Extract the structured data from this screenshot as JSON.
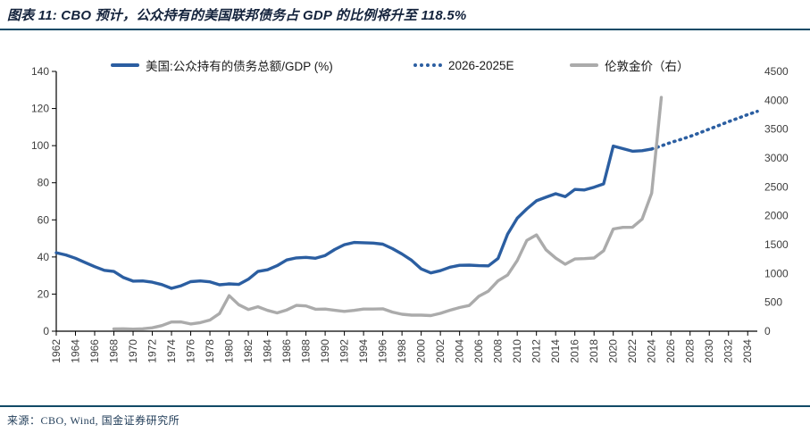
{
  "header": {
    "title": "图表 11: CBO 预计，公众持有的美国联邦债务占 GDP 的比例将升至 118.5%"
  },
  "legend": [
    {
      "label": "美国:公众持有的债务总额/GDP (%)",
      "style": "solid",
      "color": "#2B5EA1"
    },
    {
      "label": "2026-2025E",
      "style": "dotted",
      "color": "#2B5EA1"
    },
    {
      "label": "伦敦金价（右）",
      "style": "solid",
      "color": "#ABABAB"
    }
  ],
  "footer": {
    "source": "来源：CBO, Wind, 国金证券研究所"
  },
  "colors": {
    "accent_rule": "#114A66",
    "title_text": "#14233C",
    "debt_line": "#2B5EA1",
    "gold_line": "#ABABAB",
    "axis_text": "#3d3d3d"
  },
  "chart_data": {
    "type": "line",
    "title": "图表 11: CBO 预计，公众持有的美国联邦债务占 GDP 的比例将升至 118.5%",
    "x_range": [
      1962,
      2035
    ],
    "x_ticks": [
      1962,
      1964,
      1966,
      1968,
      1970,
      1972,
      1974,
      1976,
      1978,
      1980,
      1982,
      1984,
      1986,
      1988,
      1990,
      1992,
      1994,
      1996,
      1998,
      2000,
      2002,
      2004,
      2006,
      2008,
      2010,
      2012,
      2014,
      2016,
      2018,
      2020,
      2022,
      2024,
      2026,
      2028,
      2030,
      2032,
      2034
    ],
    "left_axis": {
      "min": 0,
      "max": 140,
      "step": 20,
      "ticks": [
        0,
        20,
        40,
        60,
        80,
        100,
        120,
        140
      ]
    },
    "right_axis": {
      "min": 0,
      "max": 4500,
      "step": 500,
      "ticks": [
        0,
        500,
        1000,
        1500,
        2000,
        2500,
        3000,
        3500,
        4000,
        4500
      ]
    },
    "grid": false,
    "legend_position": "top",
    "series": [
      {
        "name": "美国:公众持有的债务总额/GDP (%)",
        "axis": "left",
        "style": "solid",
        "color": "#2B5EA1",
        "start_year": 1962,
        "values": [
          42.3,
          41.1,
          39.3,
          37.0,
          34.8,
          32.8,
          32.2,
          28.9,
          27.0,
          27.1,
          26.4,
          25.1,
          23.1,
          24.5,
          26.7,
          27.1,
          26.6,
          25.0,
          25.5,
          25.2,
          28.0,
          32.2,
          33.1,
          35.3,
          38.4,
          39.5,
          39.8,
          39.3,
          40.8,
          44.0,
          46.6,
          47.8,
          47.7,
          47.5,
          46.9,
          44.5,
          41.6,
          38.2,
          33.6,
          31.4,
          32.6,
          34.5,
          35.5,
          35.6,
          35.3,
          35.2,
          39.2,
          52.3,
          60.9,
          65.9,
          70.3,
          72.2,
          74.1,
          72.5,
          76.4,
          76.1,
          77.6,
          79.4,
          99.8,
          98.4,
          97.0,
          97.3,
          98.2
        ]
      },
      {
        "name": "2026-2025E",
        "axis": "left",
        "style": "dotted",
        "color": "#2B5EA1",
        "start_year": 2024,
        "values": [
          98.2,
          99.9,
          101.7,
          103.3,
          105.0,
          106.9,
          108.9,
          110.9,
          112.9,
          114.8,
          116.7,
          118.5
        ]
      },
      {
        "name": "伦敦金价（右）",
        "axis": "right",
        "style": "solid",
        "color": "#ABABAB",
        "start_year": 1968,
        "values": [
          39,
          41,
          36,
          41,
          58,
          97,
          159,
          161,
          125,
          148,
          193,
          306,
          615,
          460,
          376,
          424,
          361,
          317,
          368,
          447,
          437,
          381,
          384,
          362,
          344,
          360,
          384,
          384,
          388,
          331,
          294,
          279,
          279,
          271,
          310,
          363,
          410,
          445,
          604,
          695,
          872,
          972,
          1225,
          1572,
          1669,
          1411,
          1266,
          1160,
          1251,
          1257,
          1268,
          1393,
          1770,
          1799,
          1800,
          1941,
          2390,
          4050
        ]
      }
    ]
  }
}
